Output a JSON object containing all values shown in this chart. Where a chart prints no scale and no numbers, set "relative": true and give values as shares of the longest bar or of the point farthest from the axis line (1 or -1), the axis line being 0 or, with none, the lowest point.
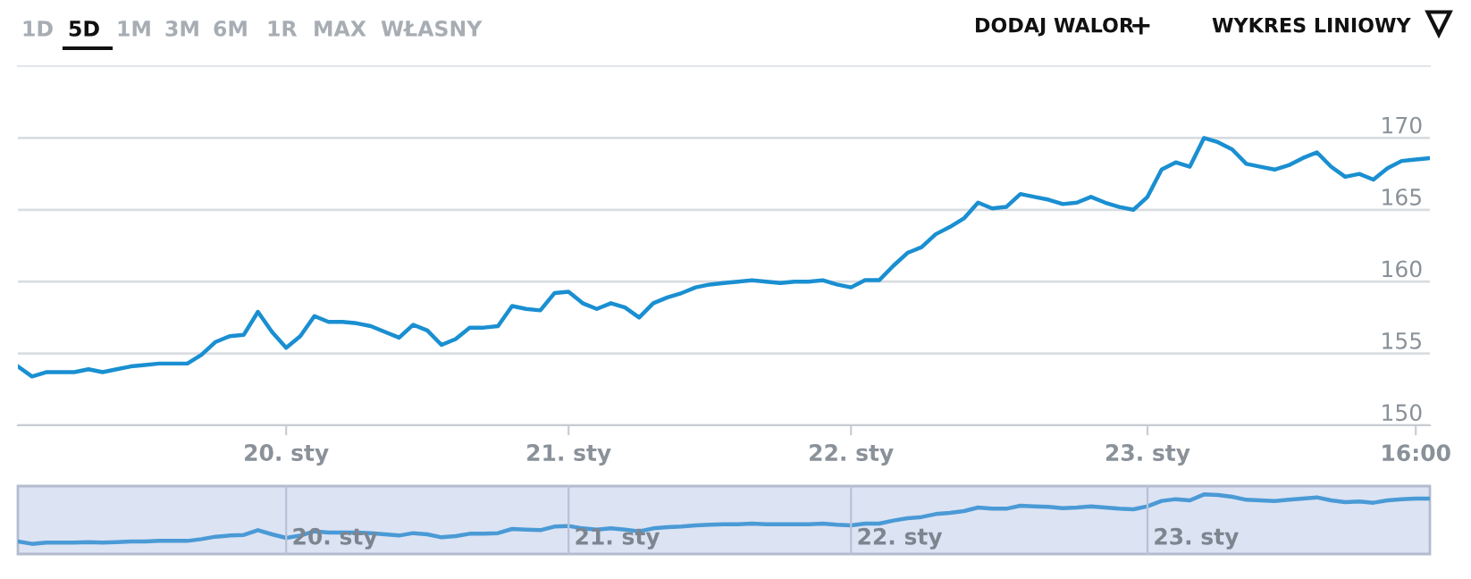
{
  "chart_data": [
    {
      "type": "line",
      "annotations": [
        "1D",
        "5D",
        "1M",
        "3M",
        "6M",
        "1R",
        "MAX",
        "WŁASNY",
        "DODAJ WALOR",
        "+",
        "WYKRES LINIOWY"
      ],
      "categories": [
        null,
        null,
        null,
        null,
        null,
        null,
        null,
        null,
        null,
        null,
        null,
        null,
        null,
        null,
        null,
        null,
        null,
        null,
        null,
        "20. sty",
        null,
        null,
        null,
        null,
        null,
        null,
        null,
        null,
        null,
        null,
        null,
        null,
        null,
        null,
        null,
        null,
        null,
        null,
        null,
        "21. sty",
        null,
        null,
        null,
        null,
        null,
        null,
        null,
        null,
        null,
        null,
        null,
        null,
        null,
        null,
        null,
        null,
        null,
        null,
        null,
        "22. sty",
        null,
        null,
        null,
        null,
        null,
        null,
        null,
        null,
        null,
        null,
        null,
        null,
        null,
        null,
        null,
        null,
        null,
        null,
        null,
        null,
        "23. sty",
        null,
        null,
        null,
        null,
        null,
        null,
        null,
        null,
        null,
        null,
        null,
        null,
        null,
        null,
        null,
        null,
        null,
        null,
        "16:00",
        null
      ],
      "series": [
        {
          "color": "#1a8fd1",
          "values": [
            154.1,
            153.4,
            153.7,
            153.7,
            153.7,
            153.9,
            153.7,
            153.9,
            154.1,
            154.2,
            154.3,
            154.3,
            154.3,
            154.9,
            155.8,
            156.2,
            156.3,
            157.9,
            156.5,
            155.4,
            156.2,
            157.6,
            157.2,
            157.2,
            157.1,
            156.9,
            156.5,
            156.1,
            157.0,
            156.6,
            155.6,
            156.0,
            156.8,
            156.8,
            156.9,
            158.3,
            158.1,
            158.0,
            159.2,
            159.3,
            158.5,
            158.1,
            158.5,
            158.2,
            157.5,
            158.5,
            158.9,
            159.2,
            159.6,
            159.8,
            159.9,
            160.0,
            160.1,
            160.0,
            159.9,
            160.0,
            160.0,
            160.1,
            159.8,
            159.6,
            160.1,
            160.1,
            161.1,
            162.0,
            162.4,
            163.3,
            163.8,
            164.4,
            165.5,
            165.1,
            165.2,
            166.1,
            165.9,
            165.7,
            165.4,
            165.5,
            165.9,
            165.5,
            165.2,
            165.0,
            165.9,
            167.8,
            168.3,
            168.0,
            170.0,
            169.7,
            169.2,
            168.2,
            168.0,
            167.8,
            168.1,
            168.6,
            169.0,
            168.0,
            167.3,
            167.5,
            167.1,
            167.9,
            168.4,
            168.5,
            168.6
          ]
        }
      ],
      "ylim": [
        150,
        175
      ],
      "yticks": [
        150,
        155,
        160,
        165,
        170
      ],
      "grid": "y"
    },
    {
      "type": "line",
      "relative": true,
      "annotations": [
        "20. sty",
        "21. sty",
        "22. sty",
        "23. sty"
      ],
      "categories": [
        null,
        null,
        null,
        null,
        null,
        null,
        null,
        null,
        null,
        null,
        null,
        null,
        null,
        null,
        null,
        null,
        null,
        null,
        null,
        null,
        null,
        null,
        null,
        null,
        null,
        null,
        null,
        null,
        null,
        null,
        null,
        null,
        null,
        null,
        null,
        null,
        null,
        null,
        null,
        null,
        null,
        null,
        null,
        null,
        null,
        null,
        null,
        null,
        null,
        null,
        null,
        null,
        null,
        null,
        null,
        null,
        null,
        null,
        null,
        null,
        null,
        null,
        null,
        null,
        null,
        null,
        null,
        null,
        null,
        null,
        null,
        null,
        null,
        null,
        null,
        null,
        null,
        null,
        null,
        null,
        null,
        null,
        null,
        null,
        null,
        null,
        null,
        null,
        null,
        null,
        null,
        null,
        null,
        null,
        null,
        null,
        null,
        null,
        null,
        null,
        null
      ],
      "series": [
        {
          "color": "#4a9ad6",
          "values": [
            0.21,
            0.17,
            0.19,
            0.19,
            0.19,
            0.2,
            0.19,
            0.2,
            0.21,
            0.21,
            0.22,
            0.22,
            0.22,
            0.25,
            0.29,
            0.31,
            0.32,
            0.4,
            0.33,
            0.27,
            0.31,
            0.38,
            0.36,
            0.36,
            0.36,
            0.35,
            0.33,
            0.31,
            0.35,
            0.33,
            0.28,
            0.3,
            0.34,
            0.34,
            0.35,
            0.42,
            0.41,
            0.4,
            0.46,
            0.47,
            0.43,
            0.41,
            0.43,
            0.41,
            0.38,
            0.43,
            0.45,
            0.46,
            0.48,
            0.49,
            0.5,
            0.5,
            0.51,
            0.5,
            0.5,
            0.5,
            0.5,
            0.51,
            0.49,
            0.48,
            0.51,
            0.51,
            0.56,
            0.6,
            0.62,
            0.67,
            0.69,
            0.72,
            0.78,
            0.76,
            0.76,
            0.81,
            0.8,
            0.79,
            0.77,
            0.78,
            0.8,
            0.78,
            0.76,
            0.75,
            0.8,
            0.89,
            0.92,
            0.9,
            1,
            0.99,
            0.96,
            0.91,
            0.9,
            0.89,
            0.91,
            0.93,
            0.95,
            0.9,
            0.87,
            0.88,
            0.86,
            0.9,
            0.92,
            0.93,
            0.93
          ]
        }
      ],
      "grid": "x"
    }
  ]
}
